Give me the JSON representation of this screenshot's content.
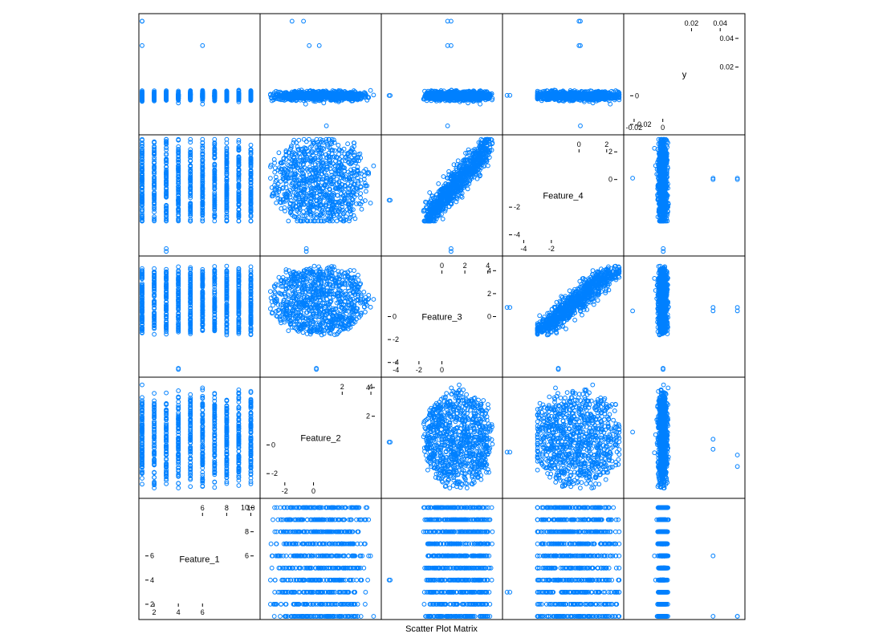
{
  "chart_data": {
    "type": "scatter",
    "title": "Scatter Plot Matrix",
    "variables": [
      {
        "name": "Feature_1",
        "range": [
          1,
          10.5
        ],
        "ticks_low": [
          2,
          4,
          6
        ],
        "ticks_high": [
          6,
          8,
          10
        ]
      },
      {
        "name": "Feature_2",
        "range": [
          -3.5,
          4.5
        ],
        "ticks_low": [
          -2,
          0
        ],
        "ticks_high": [
          2,
          4
        ]
      },
      {
        "name": "Feature_3",
        "range": [
          -5,
          5
        ],
        "ticks_low": [
          -4,
          -2,
          0
        ],
        "ticks_high": [
          0,
          2,
          4
        ]
      },
      {
        "name": "Feature_4",
        "range": [
          -5.3,
          3
        ],
        "ticks_low": [
          -4,
          -2
        ],
        "ticks_high": [
          0,
          2
        ]
      },
      {
        "name": "y",
        "range": [
          -0.025,
          0.055
        ],
        "ticks_low": [
          -0.02,
          0.0
        ],
        "ticks_high": [
          0.02,
          0.04
        ]
      }
    ],
    "diagonal_axis_labels": [
      {
        "var": 0,
        "side": "left",
        "ticks": [
          "6",
          "8",
          "10"
        ]
      },
      {
        "var": 0,
        "side": "top",
        "ticks": [
          "6",
          "8",
          "10"
        ]
      },
      {
        "var": 0,
        "side": "bottom",
        "ticks": [
          "2",
          "4",
          "6"
        ]
      },
      {
        "var": 0,
        "side": "right",
        "ticks": [
          "2",
          "4",
          "6"
        ]
      }
    ],
    "feature_1_levels": [
      1,
      2,
      3,
      4,
      5,
      6,
      7,
      8,
      9,
      10
    ],
    "outliers": {
      "y_values": [
        0.052,
        0.035,
        -0.021
      ],
      "y_feature_2_extremes": [
        [
          0.035,
          0.4
        ],
        [
          0.052,
          -0.7
        ]
      ],
      "feature_4_low_cluster": [
        -5.0,
        -5.2
      ],
      "feature_3_low_cluster": [
        -4.5,
        -4.6
      ]
    },
    "series": [
      {
        "name": "",
        "color": "#0080ff"
      }
    ],
    "grid": false,
    "legend": "none"
  },
  "point_color": "#0080ff"
}
